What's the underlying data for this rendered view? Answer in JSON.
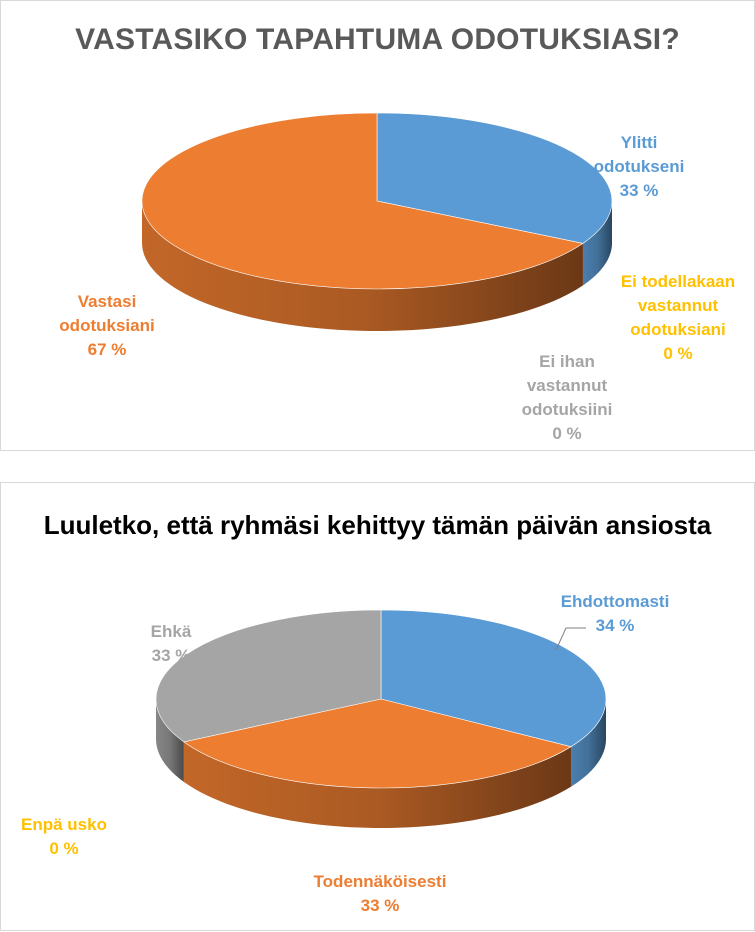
{
  "chart_data": [
    {
      "type": "pie",
      "title": "VASTASIKO TAPAHTUMA ODOTUKSIASI?",
      "slices": [
        {
          "label": [
            "Ylitti",
            "odotukseni"
          ],
          "pct_label": "33 %",
          "value": 33,
          "color": "#5b9bd5"
        },
        {
          "label": [
            "Ei todellakaan",
            "vastannut",
            "odotuksiani"
          ],
          "pct_label": "0 %",
          "value": 0,
          "color": "#ffc000"
        },
        {
          "label": [
            "Ei ihan",
            "vastannut",
            "odotuksiini"
          ],
          "pct_label": "0 %",
          "value": 0,
          "color": "#a5a5a5"
        },
        {
          "label": [
            "Vastasi",
            "odotuksiani"
          ],
          "pct_label": "67 %",
          "value": 67,
          "color": "#ed7d31"
        }
      ]
    },
    {
      "type": "pie",
      "title": "Luuletko, että ryhmäsi kehittyy tämän päivän ansiosta",
      "slices": [
        {
          "label": [
            "Ehdottomasti"
          ],
          "pct_label": "34 %",
          "value": 34,
          "color": "#5b9bd5"
        },
        {
          "label": [
            "Todennäköisesti"
          ],
          "pct_label": "33 %",
          "value": 33,
          "color": "#ed7d31"
        },
        {
          "label": [
            "Enpä usko"
          ],
          "pct_label": "0 %",
          "value": 0,
          "color": "#ffc000"
        },
        {
          "label": [
            "Ehkä"
          ],
          "pct_label": "33 %",
          "value": 33,
          "color": "#a5a5a5"
        }
      ]
    }
  ]
}
